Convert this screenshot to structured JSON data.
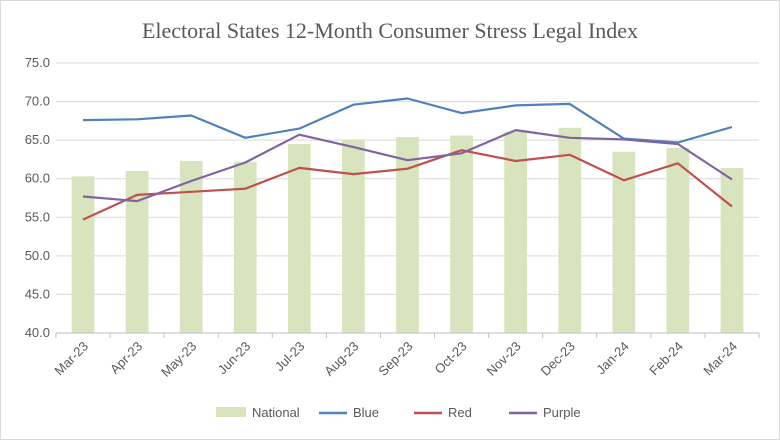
{
  "chart_data": {
    "type": "bar",
    "title": "Electoral States 12-Month Consumer Stress Legal Index",
    "categories": [
      "Mar-23",
      "Apr-23",
      "May-23",
      "Jun-23",
      "Jul-23",
      "Aug-23",
      "Sep-23",
      "Oct-23",
      "Nov-23",
      "Dec-23",
      "Jan-24",
      "Feb-24",
      "Mar-24"
    ],
    "ylim": [
      40,
      75
    ],
    "yticks": [
      "40.0",
      "45.0",
      "50.0",
      "55.0",
      "60.0",
      "65.0",
      "70.0",
      "75.0"
    ],
    "grid": true,
    "legend_position": "bottom",
    "bar_series": {
      "name": "National",
      "color": "#d7e4bd",
      "values": [
        60.3,
        61.0,
        62.3,
        62.2,
        64.5,
        65.1,
        65.4,
        65.6,
        66.1,
        66.6,
        63.5,
        64.0,
        61.4
      ]
    },
    "line_series": [
      {
        "name": "Blue",
        "color": "#4f81bd",
        "values": [
          67.6,
          67.7,
          68.2,
          65.3,
          66.5,
          69.6,
          70.4,
          68.5,
          69.5,
          69.7,
          65.2,
          64.7,
          66.7
        ]
      },
      {
        "name": "Red",
        "color": "#c0504d",
        "values": [
          54.7,
          57.9,
          58.3,
          58.7,
          61.4,
          60.6,
          61.3,
          63.7,
          62.3,
          63.1,
          59.8,
          62.0,
          56.4
        ]
      },
      {
        "name": "Purple",
        "color": "#8064a2",
        "values": [
          57.7,
          57.1,
          59.7,
          62.1,
          65.7,
          64.1,
          62.4,
          63.3,
          66.3,
          65.3,
          65.1,
          64.5,
          59.9
        ]
      }
    ]
  }
}
